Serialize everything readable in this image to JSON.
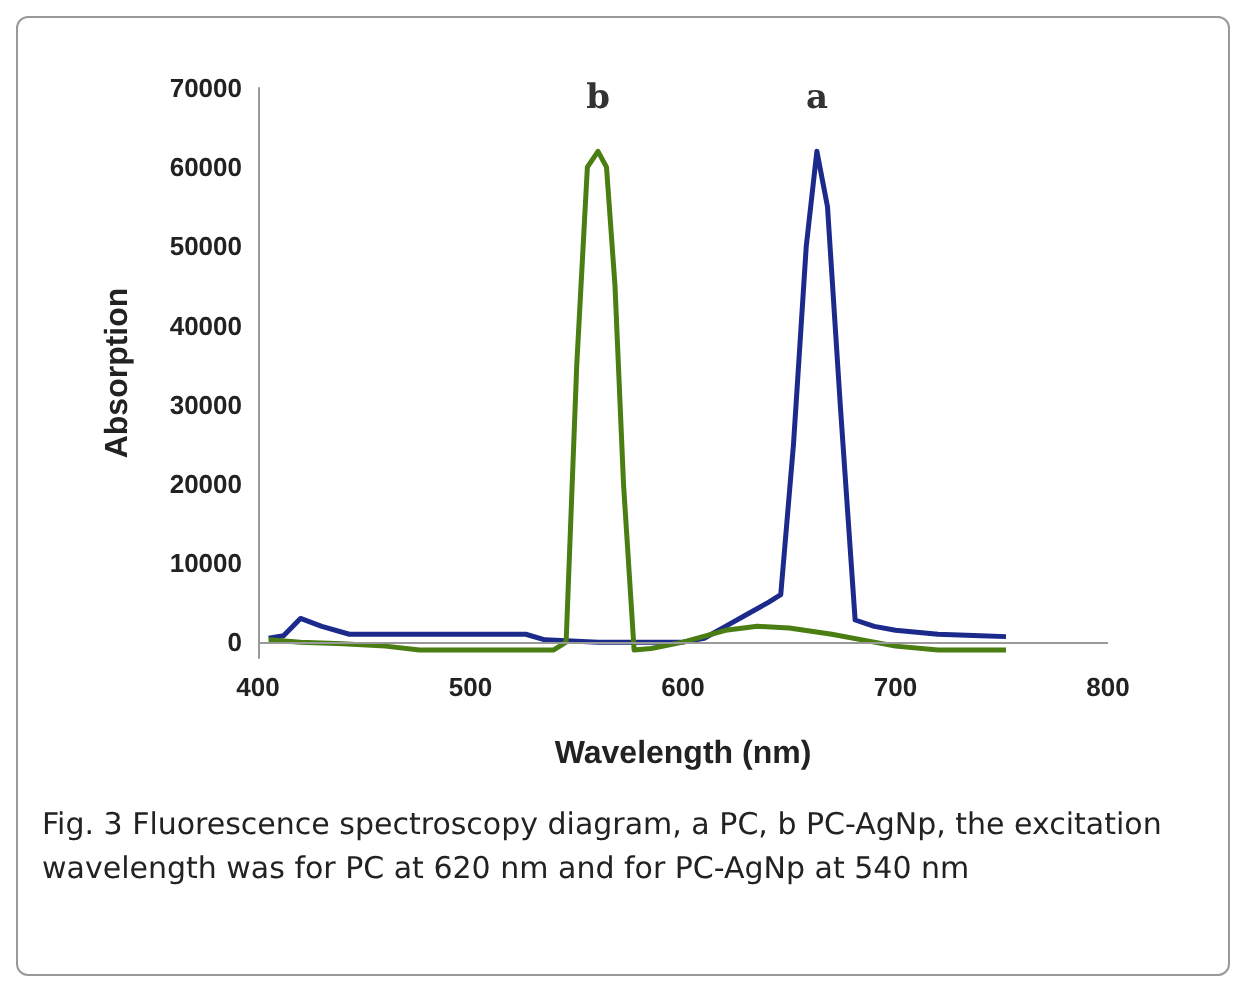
{
  "chart_data": {
    "type": "line",
    "xlabel": "Wavelength (nm)",
    "ylabel": "Absorption",
    "xlim": [
      400,
      800
    ],
    "xticks": [
      400,
      500,
      600,
      700,
      800
    ],
    "ylim": [
      -2000,
      70000
    ],
    "yticks": [
      0,
      10000,
      20000,
      30000,
      40000,
      50000,
      60000,
      70000
    ],
    "grid": false,
    "marker": "none",
    "line_style": "solid",
    "series": [
      {
        "color": "#1c2a8c",
        "x": [
          405,
          412,
          420,
          430,
          443,
          480,
          526,
          535,
          560,
          590,
          600,
          610,
          620,
          630,
          640,
          646,
          652,
          658,
          663,
          668,
          674,
          681,
          690,
          700,
          720,
          740,
          752
        ],
        "values": [
          500,
          800,
          3000,
          2000,
          1000,
          1000,
          1000,
          300,
          0,
          0,
          0,
          500,
          2000,
          3500,
          5000,
          6000,
          25000,
          50000,
          62000,
          55000,
          30000,
          2800,
          2000,
          1500,
          1000,
          800,
          700
        ]
      },
      {
        "color": "#4a7d12",
        "x": [
          405,
          420,
          440,
          460,
          476,
          500,
          539,
          545,
          550,
          555,
          560,
          564,
          568,
          572,
          577,
          585,
          600,
          620,
          635,
          650,
          670,
          690,
          700,
          720,
          752
        ],
        "values": [
          300,
          0,
          -200,
          -500,
          -1000,
          -1000,
          -1000,
          0,
          35000,
          60000,
          62000,
          60000,
          45000,
          20000,
          -1000,
          -800,
          0,
          1500,
          2000,
          1800,
          1000,
          0,
          -500,
          -1000,
          -1000
        ]
      }
    ],
    "annotations": [
      "a",
      "b",
      "Fig. 3  Fluorescence spectroscopy diagram, a PC, b PC-AgNp, the excitation wavelength was for PC at 620 nm and for PC-AgNp at 540 nm"
    ]
  }
}
